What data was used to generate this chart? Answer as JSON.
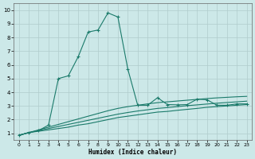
{
  "xlabel": "Humidex (Indice chaleur)",
  "xlim": [
    -0.5,
    23.5
  ],
  "ylim": [
    0.5,
    10.5
  ],
  "yticks": [
    1,
    2,
    3,
    4,
    5,
    6,
    7,
    8,
    9,
    10
  ],
  "xticks": [
    0,
    1,
    2,
    3,
    4,
    5,
    6,
    7,
    8,
    9,
    10,
    11,
    12,
    13,
    14,
    15,
    16,
    17,
    18,
    19,
    20,
    21,
    22,
    23
  ],
  "bg_color": "#cce8e8",
  "line_color": "#1a7a6a",
  "grid_color": "#b0cccc",
  "lines": [
    {
      "x": [
        0,
        1,
        2,
        3,
        4,
        5,
        6,
        7,
        8,
        9,
        10,
        11,
        12,
        13,
        14,
        15,
        16,
        17,
        18,
        19,
        20,
        21,
        22,
        23
      ],
      "y": [
        0.85,
        1.05,
        1.15,
        1.25,
        1.35,
        1.45,
        1.6,
        1.7,
        1.85,
        2.0,
        2.15,
        2.25,
        2.35,
        2.45,
        2.55,
        2.6,
        2.68,
        2.75,
        2.82,
        2.9,
        2.95,
        3.0,
        3.05,
        3.1
      ],
      "marker": false
    },
    {
      "x": [
        0,
        1,
        2,
        3,
        4,
        5,
        6,
        7,
        8,
        9,
        10,
        11,
        12,
        13,
        14,
        15,
        16,
        17,
        18,
        19,
        20,
        21,
        22,
        23
      ],
      "y": [
        0.85,
        1.05,
        1.2,
        1.35,
        1.5,
        1.65,
        1.8,
        1.95,
        2.1,
        2.25,
        2.4,
        2.52,
        2.63,
        2.72,
        2.82,
        2.88,
        2.95,
        3.02,
        3.08,
        3.14,
        3.2,
        3.25,
        3.3,
        3.35
      ],
      "marker": false
    },
    {
      "x": [
        0,
        1,
        2,
        3,
        4,
        5,
        6,
        7,
        8,
        9,
        10,
        11,
        12,
        13,
        14,
        15,
        16,
        17,
        18,
        19,
        20,
        21,
        22,
        23
      ],
      "y": [
        0.85,
        1.05,
        1.25,
        1.45,
        1.65,
        1.85,
        2.05,
        2.25,
        2.45,
        2.65,
        2.82,
        2.95,
        3.05,
        3.15,
        3.24,
        3.3,
        3.36,
        3.42,
        3.48,
        3.54,
        3.59,
        3.63,
        3.67,
        3.7
      ],
      "marker": false
    },
    {
      "x": [
        0,
        1,
        2,
        3,
        4,
        5,
        6,
        7,
        8,
        9,
        10,
        11,
        12,
        13,
        14,
        15,
        16,
        17,
        18,
        19,
        20,
        21,
        22,
        23
      ],
      "y": [
        0.85,
        1.05,
        1.2,
        1.6,
        5.0,
        5.2,
        6.6,
        8.4,
        8.55,
        9.8,
        9.5,
        5.7,
        3.05,
        3.05,
        3.6,
        3.1,
        3.08,
        3.1,
        3.5,
        3.45,
        3.05,
        3.05,
        3.15,
        3.15
      ],
      "marker": true
    }
  ]
}
